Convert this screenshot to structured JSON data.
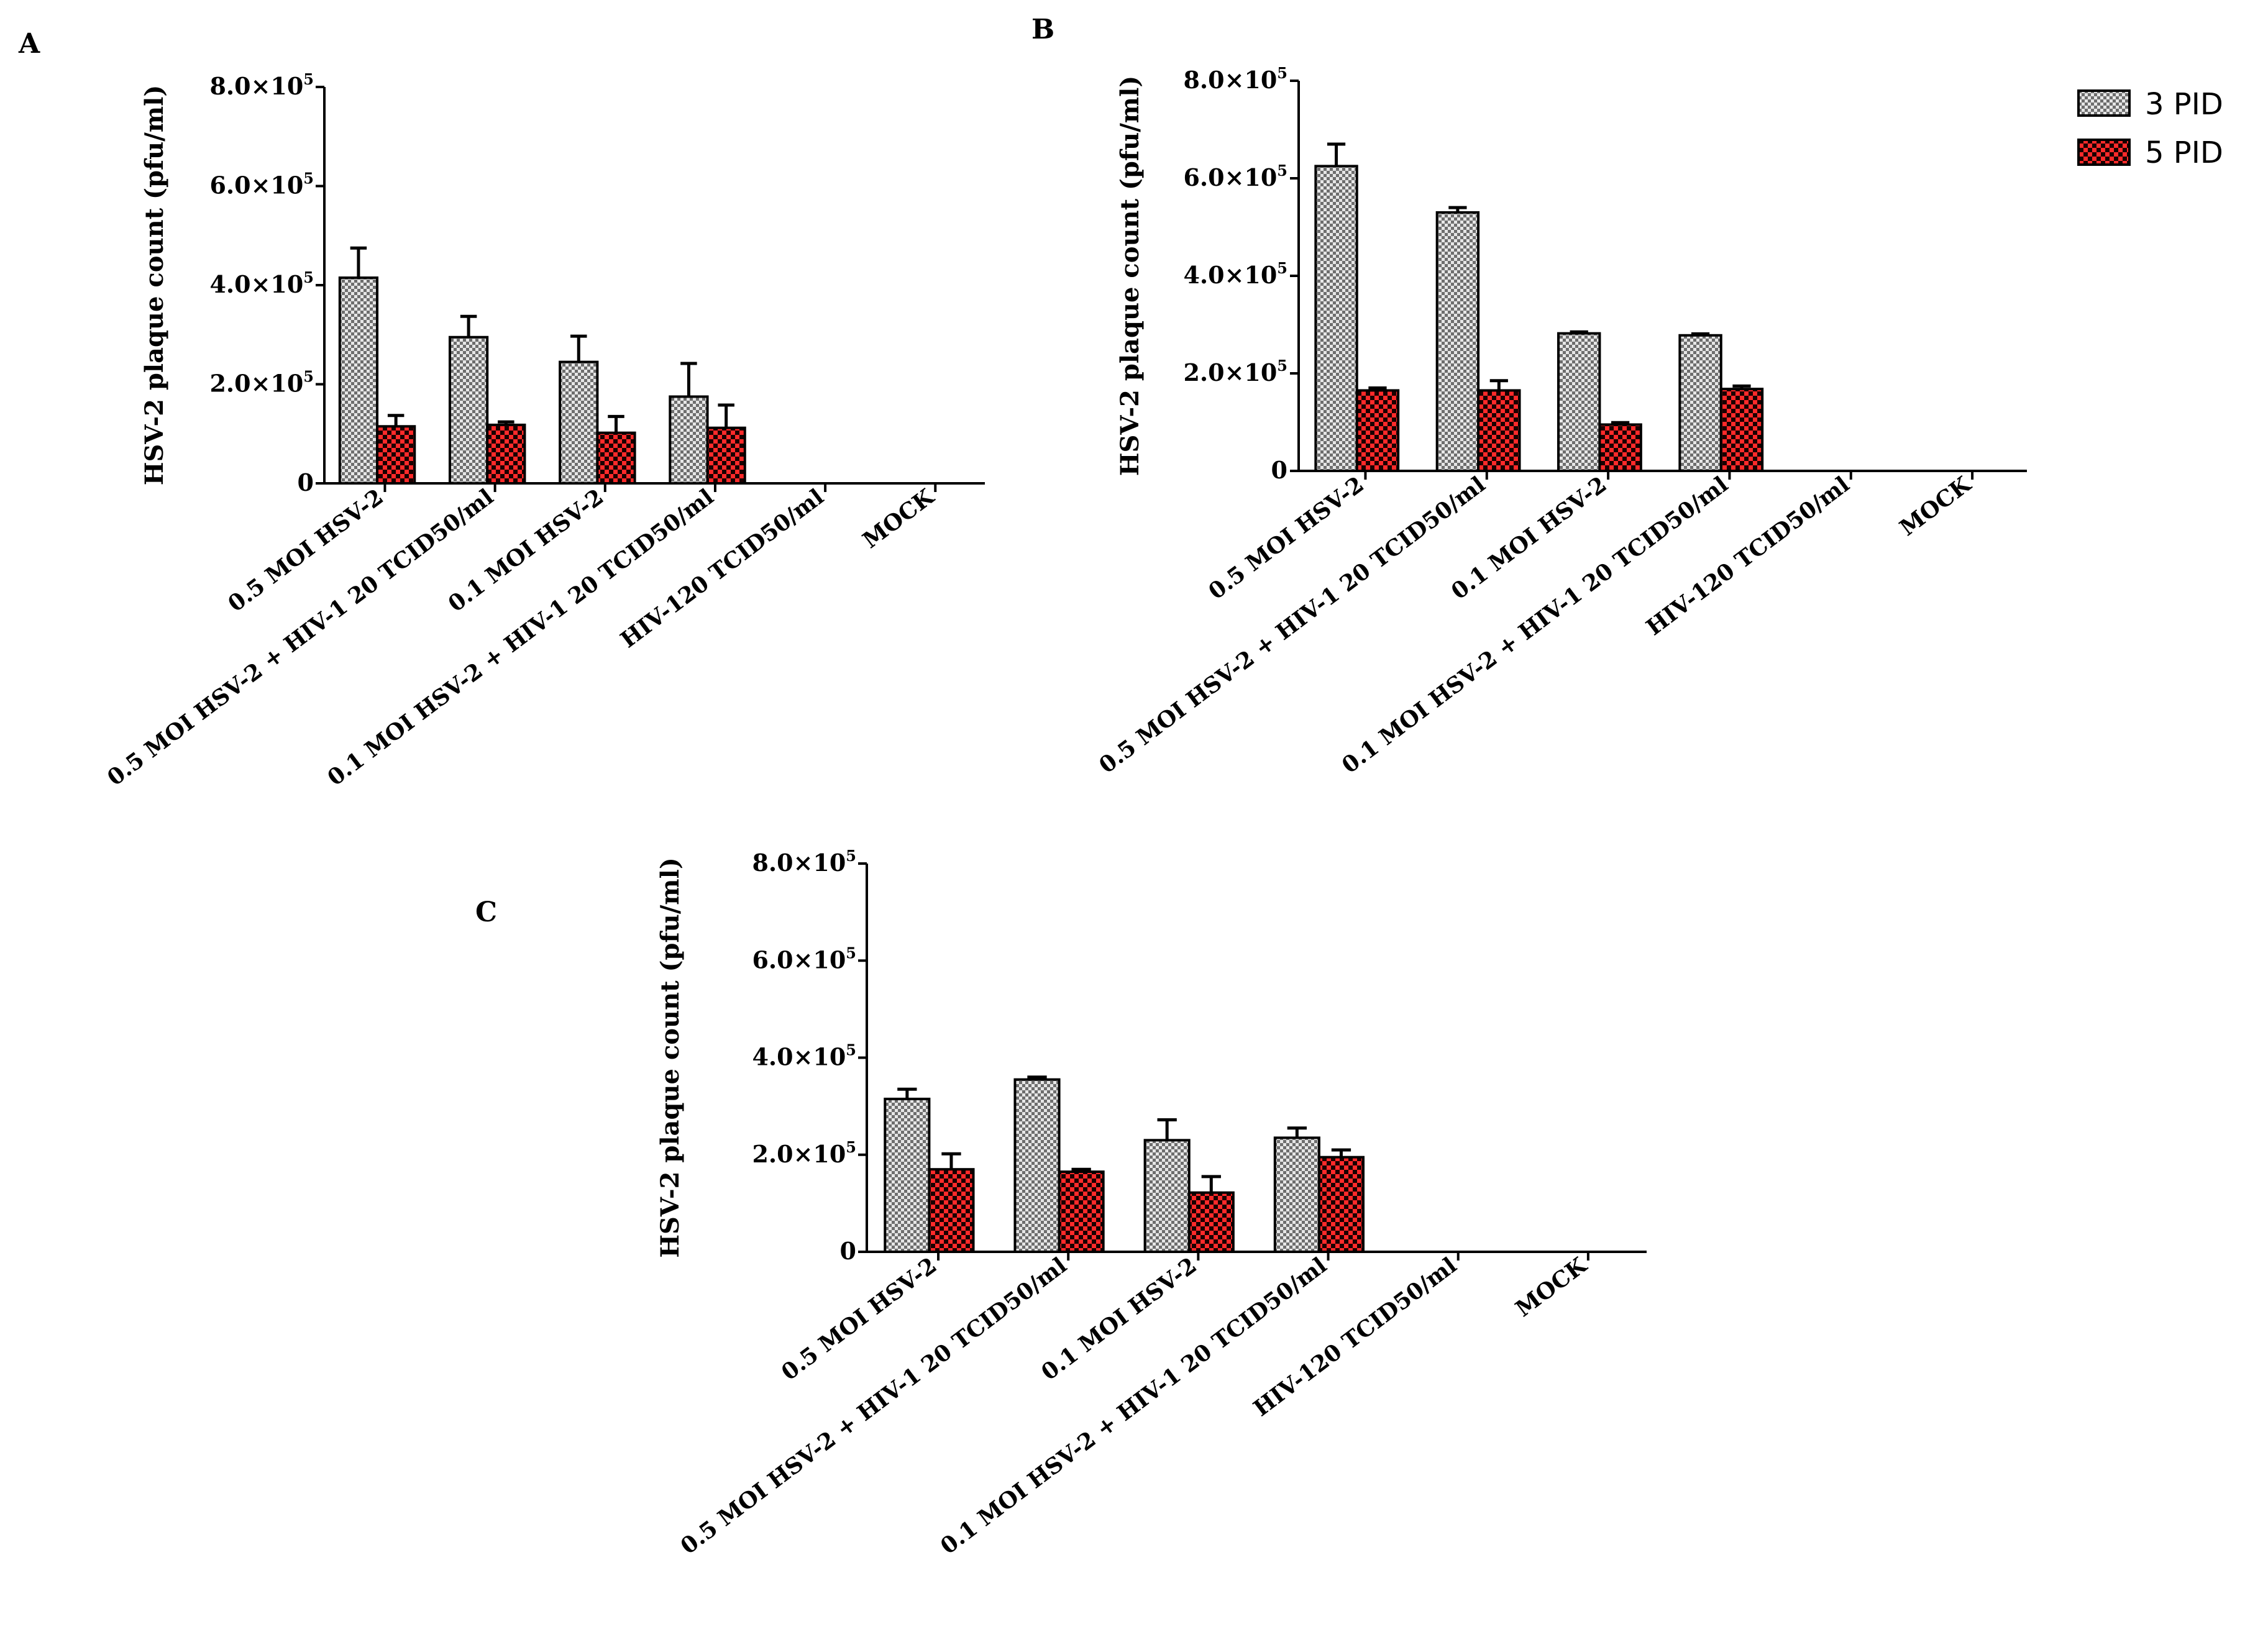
{
  "colors": {
    "series_3pid": "#bdbdbd",
    "series_5pid": "#e01010",
    "axis": "#000000"
  },
  "legend": {
    "items": [
      {
        "label": "3 PID",
        "color": "#bdbdbd",
        "pattern": "gray-checker"
      },
      {
        "label": "5 PID",
        "color": "#e01010",
        "pattern": "red-checker"
      }
    ]
  },
  "chart_data": [
    {
      "panel_label": "A",
      "type": "bar",
      "ylabel": "HSV-2 plaque count (pfu/ml)",
      "ylim": [
        0,
        800000
      ],
      "ytick_values": [
        0,
        200000,
        400000,
        600000,
        800000
      ],
      "ytick_labels": [
        {
          "mant": "0",
          "exp": ""
        },
        {
          "mant": "2.0×10",
          "exp": "5"
        },
        {
          "mant": "4.0×10",
          "exp": "5"
        },
        {
          "mant": "6.0×10",
          "exp": "5"
        },
        {
          "mant": "8.0×10",
          "exp": "5"
        }
      ],
      "categories": [
        "0.5 MOI HSV-2",
        "0.5 MOI HSV-2 + HIV-1 20 TCID50/ml",
        "0.1 MOI HSV-2",
        "0.1 MOI HSV-2 + HIV-1 20 TCID50/ml",
        "HIV-120 TCID50/ml",
        "MOCK"
      ],
      "series": [
        {
          "name": "3 PID",
          "values": [
            415000,
            295000,
            245000,
            175000,
            0,
            0
          ],
          "errors": [
            60000,
            42000,
            52000,
            67000,
            0,
            0
          ]
        },
        {
          "name": "5 PID",
          "values": [
            115000,
            118000,
            102000,
            112000,
            0,
            0
          ],
          "errors": [
            22000,
            6000,
            33000,
            46000,
            0,
            0
          ]
        }
      ]
    },
    {
      "panel_label": "B",
      "type": "bar",
      "ylabel": "HSV-2 plaque count (pfu/ml)",
      "ylim": [
        0,
        800000
      ],
      "ytick_values": [
        0,
        200000,
        400000,
        600000,
        800000
      ],
      "ytick_labels": [
        {
          "mant": "0",
          "exp": ""
        },
        {
          "mant": "2.0×10",
          "exp": "5"
        },
        {
          "mant": "4.0×10",
          "exp": "5"
        },
        {
          "mant": "6.0×10",
          "exp": "5"
        },
        {
          "mant": "8.0×10",
          "exp": "5"
        }
      ],
      "categories": [
        "0.5 MOI HSV-2",
        "0.5 MOI HSV-2 + HIV-1 20 TCID50/ml",
        "0.1 MOI HSV-2",
        "0.1 MOI HSV-2 + HIV-1 20 TCID50/ml",
        "HIV-120 TCID50/ml",
        "MOCK"
      ],
      "series": [
        {
          "name": "3 PID",
          "values": [
            625000,
            530000,
            282000,
            278000,
            0,
            0
          ],
          "errors": [
            45000,
            10000,
            3000,
            3000,
            0,
            0
          ]
        },
        {
          "name": "5 PID",
          "values": [
            165000,
            165000,
            95000,
            168000,
            0,
            0
          ],
          "errors": [
            5000,
            20000,
            4000,
            6000,
            0,
            0
          ]
        }
      ]
    },
    {
      "panel_label": "C",
      "type": "bar",
      "ylabel": "HSV-2 plaque count (pfu/ml)",
      "ylim": [
        0,
        800000
      ],
      "ytick_values": [
        0,
        200000,
        400000,
        600000,
        800000
      ],
      "ytick_labels": [
        {
          "mant": "0",
          "exp": ""
        },
        {
          "mant": "2.0×10",
          "exp": "5"
        },
        {
          "mant": "4.0×10",
          "exp": "5"
        },
        {
          "mant": "6.0×10",
          "exp": "5"
        },
        {
          "mant": "8.0×10",
          "exp": "5"
        }
      ],
      "categories": [
        "0.5 MOI HSV-2",
        "0.5 MOI HSV-2 + HIV-1 20 TCID50/ml",
        "0.1 MOI HSV-2",
        "0.1 MOI HSV-2 + HIV-1 20 TCID50/ml",
        "HIV-120 TCID50/ml",
        "MOCK"
      ],
      "series": [
        {
          "name": "3 PID",
          "values": [
            315000,
            355000,
            230000,
            235000,
            0,
            0
          ],
          "errors": [
            20000,
            5000,
            42000,
            20000,
            0,
            0
          ]
        },
        {
          "name": "5 PID",
          "values": [
            170000,
            165000,
            122000,
            195000,
            0,
            0
          ],
          "errors": [
            32000,
            5000,
            33000,
            15000,
            0,
            0
          ]
        }
      ]
    }
  ]
}
